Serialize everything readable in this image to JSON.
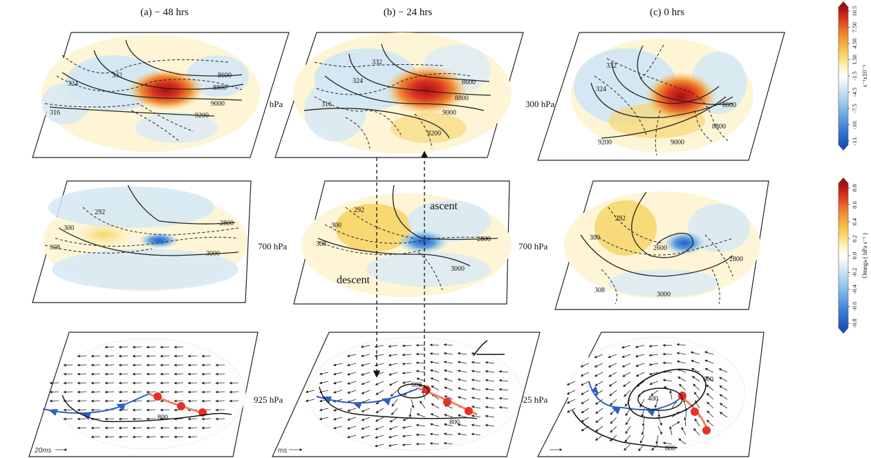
{
  "titles": [
    "(a)  − 48 hrs",
    "(b)  − 24 hrs",
    "(c)  0 hrs"
  ],
  "levels": [
    "300 hPa",
    "700 hPa",
    "925 hPa"
  ],
  "annotations": {
    "ascent": "ascent",
    "descent": "descent"
  },
  "scale_labels": [
    "20ms",
    "ms",
    ""
  ],
  "colorbars": [
    {
      "title": "s⁻¹x10⁻⁵",
      "ticks": [
        "-13.",
        "-10.",
        "-7.5",
        "-4.5",
        "-1.5",
        "1.50",
        "4.50",
        "7.50",
        "10.5"
      ]
    },
    {
      "title": "Omega ( hPa s⁻¹ )",
      "ticks": [
        "-0.8",
        "-0.6",
        "-0.4",
        "-0.2",
        "0.0",
        "0.2",
        "0.4",
        "0.6",
        "0.8"
      ]
    }
  ],
  "panels": {
    "a300": {
      "labels": [
        "332",
        "324",
        "316",
        "8600",
        "8800",
        "9000",
        "9200"
      ]
    },
    "b300": {
      "labels": [
        "332",
        "324",
        "316",
        "8600",
        "8800",
        "9000",
        "9200"
      ]
    },
    "c300": {
      "labels": [
        "332",
        "324",
        "8600",
        "8800",
        "9000",
        "9200"
      ]
    },
    "a700": {
      "labels": [
        "292",
        "300",
        "308",
        "2800",
        "3000"
      ]
    },
    "b700": {
      "labels": [
        "292",
        "300",
        "308",
        "2800",
        "3000"
      ]
    },
    "c700": {
      "labels": [
        "292",
        "300",
        "2600",
        "2800",
        "308",
        "3000"
      ]
    },
    "a925": {
      "labels": [
        "800"
      ]
    },
    "b925": {
      "labels": [
        "600",
        "800"
      ]
    },
    "c925": {
      "labels": [
        "400",
        "600",
        "800"
      ]
    }
  }
}
